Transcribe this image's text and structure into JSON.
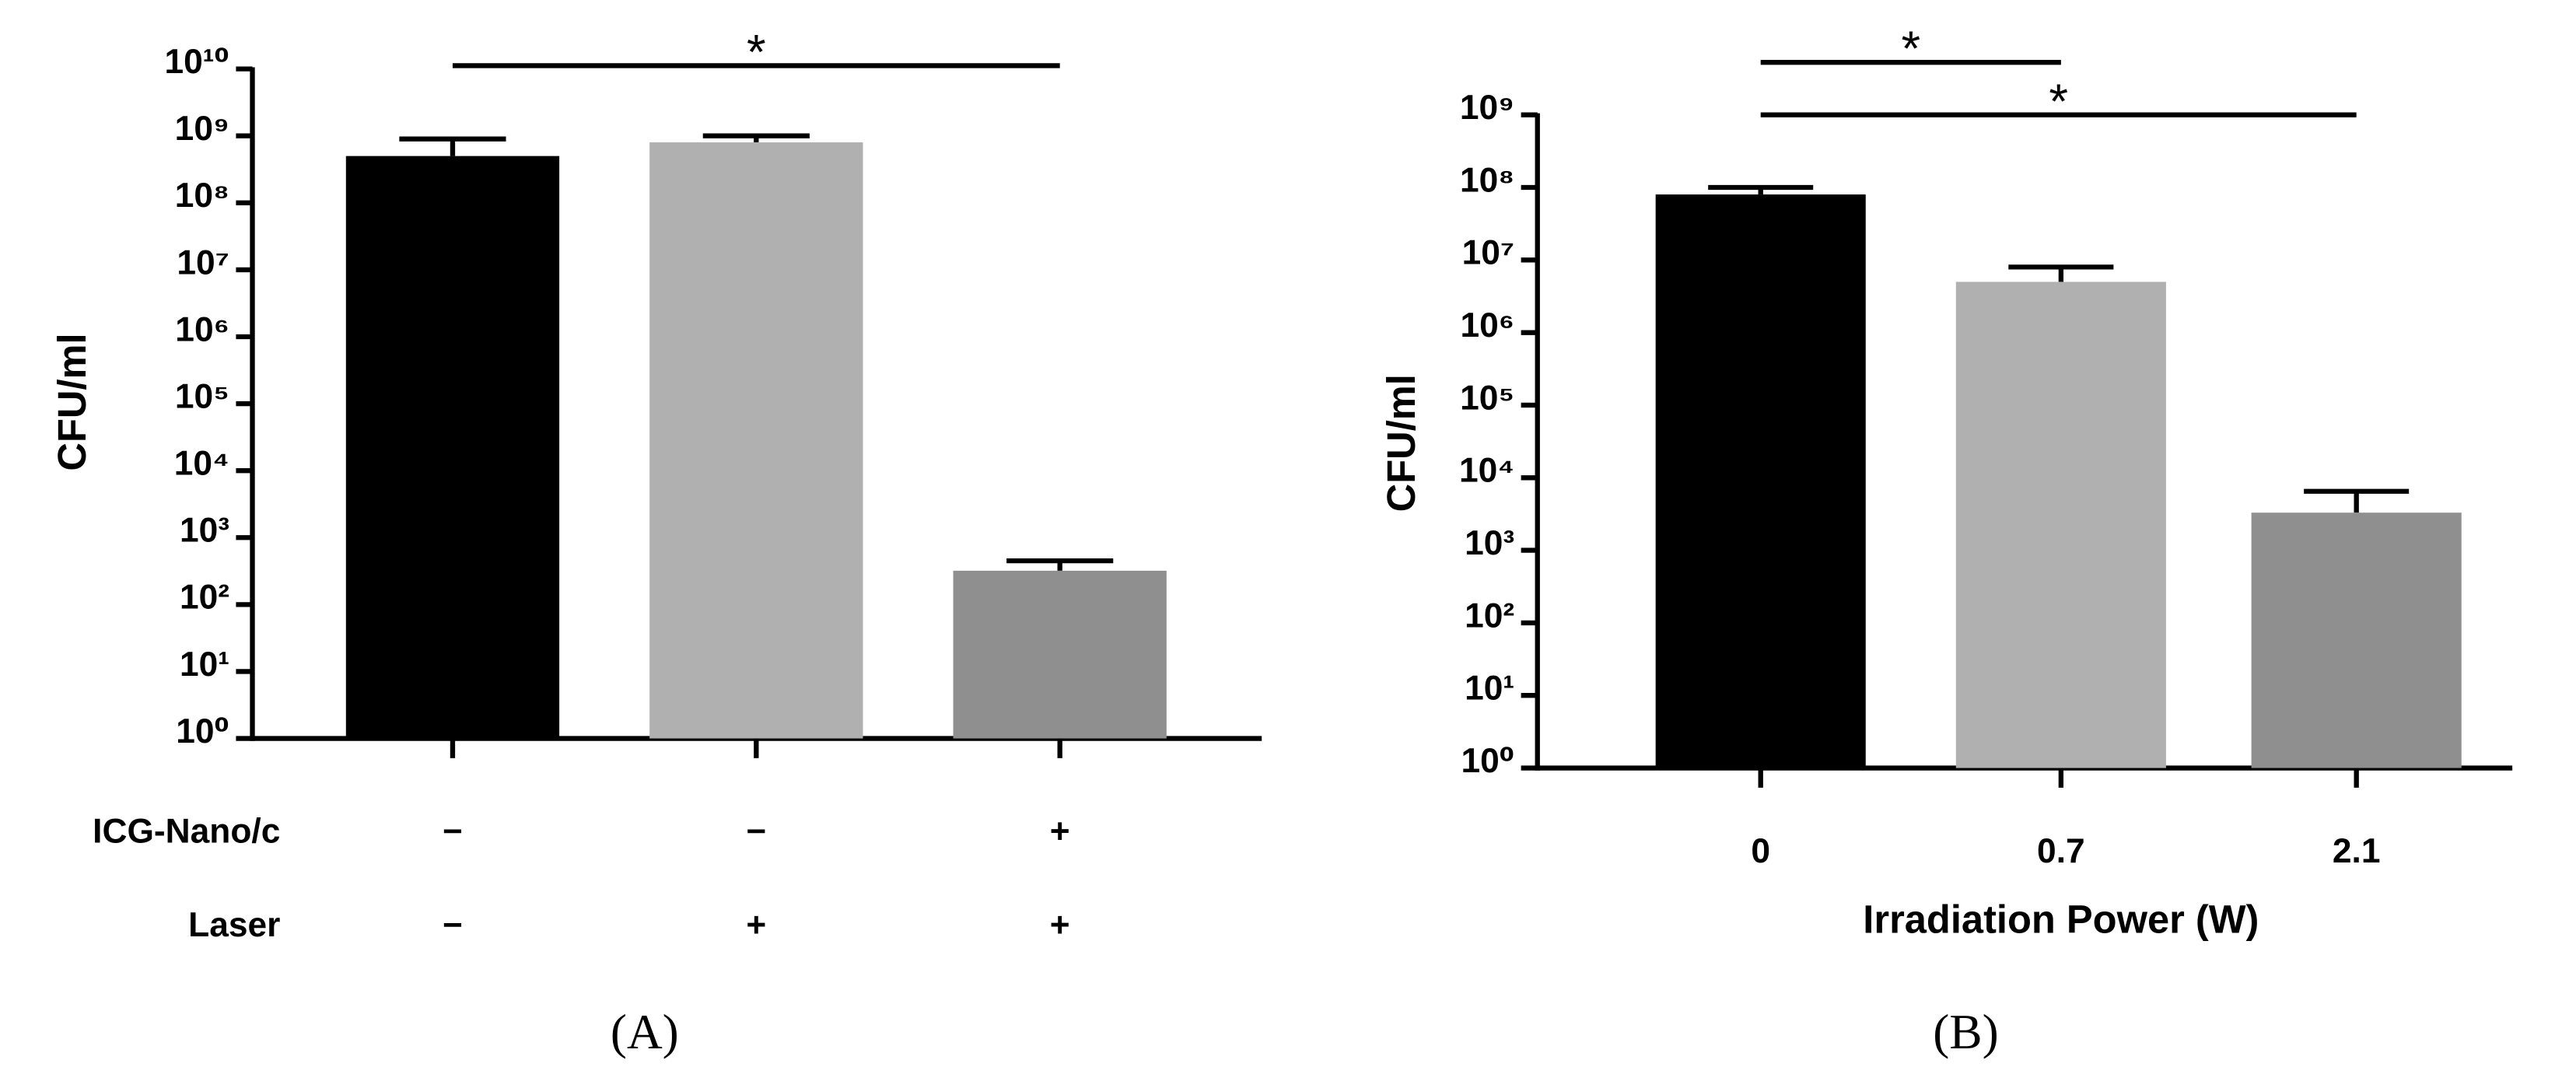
{
  "chart_data": [
    {
      "type": "bar",
      "panel": "(A)",
      "ylabel": "CFU/ml",
      "log_y": true,
      "ylim": [
        1,
        10000000000
      ],
      "yticks": [
        {
          "value": 1,
          "label": "10⁰"
        },
        {
          "value": 10,
          "label": "10¹"
        },
        {
          "value": 100,
          "label": "10²"
        },
        {
          "value": 1000,
          "label": "10³"
        },
        {
          "value": 10000,
          "label": "10⁴"
        },
        {
          "value": 100000,
          "label": "10⁵"
        },
        {
          "value": 1000000,
          "label": "10⁶"
        },
        {
          "value": 10000000,
          "label": "10⁷"
        },
        {
          "value": 100000000,
          "label": "10⁸"
        },
        {
          "value": 1000000000,
          "label": "10⁹"
        },
        {
          "value": 10000000000,
          "label": "10¹⁰"
        }
      ],
      "condition_rows": [
        {
          "label": "ICG-Nano/c",
          "values": [
            "−",
            "−",
            "+"
          ]
        },
        {
          "label": "Laser",
          "values": [
            "−",
            "+",
            "+"
          ]
        }
      ],
      "values": [
        500000000,
        800000000,
        320
      ],
      "errors": [
        400000000,
        200000000,
        130
      ],
      "colors": [
        "#000000",
        "#b0b0b0",
        "#8f8f8f"
      ],
      "significance": [
        {
          "from": 0,
          "to": 2,
          "label": "*"
        }
      ]
    },
    {
      "type": "bar",
      "panel": "(B)",
      "ylabel": "CFU/ml",
      "xlabel": "Irradiation Power (W)",
      "log_y": true,
      "ylim": [
        1,
        1000000000
      ],
      "yticks": [
        {
          "value": 1,
          "label": "10⁰"
        },
        {
          "value": 10,
          "label": "10¹"
        },
        {
          "value": 100,
          "label": "10²"
        },
        {
          "value": 1000,
          "label": "10³"
        },
        {
          "value": 10000,
          "label": "10⁴"
        },
        {
          "value": 100000,
          "label": "10⁵"
        },
        {
          "value": 1000000,
          "label": "10⁶"
        },
        {
          "value": 10000000,
          "label": "10⁷"
        },
        {
          "value": 100000000,
          "label": "10⁸"
        },
        {
          "value": 1000000000,
          "label": "10⁹"
        }
      ],
      "categories": [
        "0",
        "0.7",
        "2.1"
      ],
      "values": [
        80000000,
        5000000,
        3300
      ],
      "errors": [
        20000000,
        3000000,
        3200
      ],
      "colors": [
        "#000000",
        "#b0b0b0",
        "#8f8f8f"
      ],
      "significance": [
        {
          "from": 0,
          "to": 1,
          "label": "*"
        },
        {
          "from": 0,
          "to": 2,
          "label": "*"
        }
      ]
    }
  ]
}
